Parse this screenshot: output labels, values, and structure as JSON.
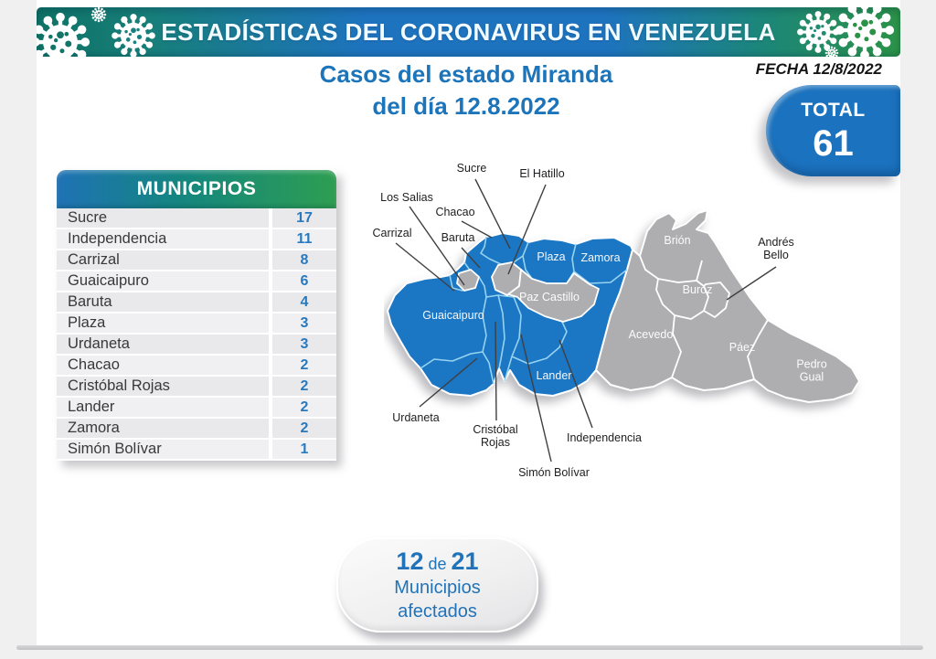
{
  "banner": {
    "title": "ESTADÍSTICAS DEL CORONAVIRUS EN VENEZUELA"
  },
  "header": {
    "title_line1": "Casos del estado Miranda",
    "title_line2": "del día 12.8.2022",
    "date": "FECHA 12/8/2022",
    "total_label": "TOTAL",
    "total_value": "61"
  },
  "table": {
    "header": "MUNICIPIOS",
    "rows": [
      {
        "name": "Sucre",
        "value": "17"
      },
      {
        "name": "Independencia",
        "value": "11"
      },
      {
        "name": "Carrizal",
        "value": "8"
      },
      {
        "name": "Guaicaipuro",
        "value": "6"
      },
      {
        "name": "Baruta",
        "value": "4"
      },
      {
        "name": "Plaza",
        "value": "3"
      },
      {
        "name": "Urdaneta",
        "value": "3"
      },
      {
        "name": "Chacao",
        "value": "2"
      },
      {
        "name": "Cristóbal Rojas",
        "value": "2"
      },
      {
        "name": "Lander",
        "value": "2"
      },
      {
        "name": "Zamora",
        "value": "2"
      },
      {
        "name": "Simón Bolívar",
        "value": "1"
      }
    ]
  },
  "chart_data": {
    "type": "table",
    "title": "Casos del estado Miranda del día 12.8.2022",
    "categories": [
      "Sucre",
      "Independencia",
      "Carrizal",
      "Guaicaipuro",
      "Baruta",
      "Plaza",
      "Urdaneta",
      "Chacao",
      "Cristóbal Rojas",
      "Lander",
      "Zamora",
      "Simón Bolívar"
    ],
    "values": [
      17,
      11,
      8,
      6,
      4,
      3,
      3,
      2,
      2,
      2,
      2,
      1
    ],
    "total": 61
  },
  "map": {
    "affected_color": "#1B76C4",
    "unaffected_color": "#AEAEB0",
    "callouts": [
      "Sucre",
      "El Hatillo",
      "Los Salias",
      "Chacao",
      "Carrizal",
      "Baruta",
      "Andrés Bello",
      "Urdaneta",
      "Cristóbal Rojas",
      "Simón Bolívar",
      "Independencia"
    ],
    "region_labels": [
      "Plaza",
      "Zamora",
      "Paz Castillo",
      "Guaicaipuro",
      "Acevedo",
      "Brión",
      "Buroz",
      "Páez",
      "Pedro Gual",
      "Lander"
    ]
  },
  "footer": {
    "affected_count": "12",
    "separator": "de",
    "total_municipalities": "21",
    "line2": "Municipios",
    "line3": "afectados"
  }
}
